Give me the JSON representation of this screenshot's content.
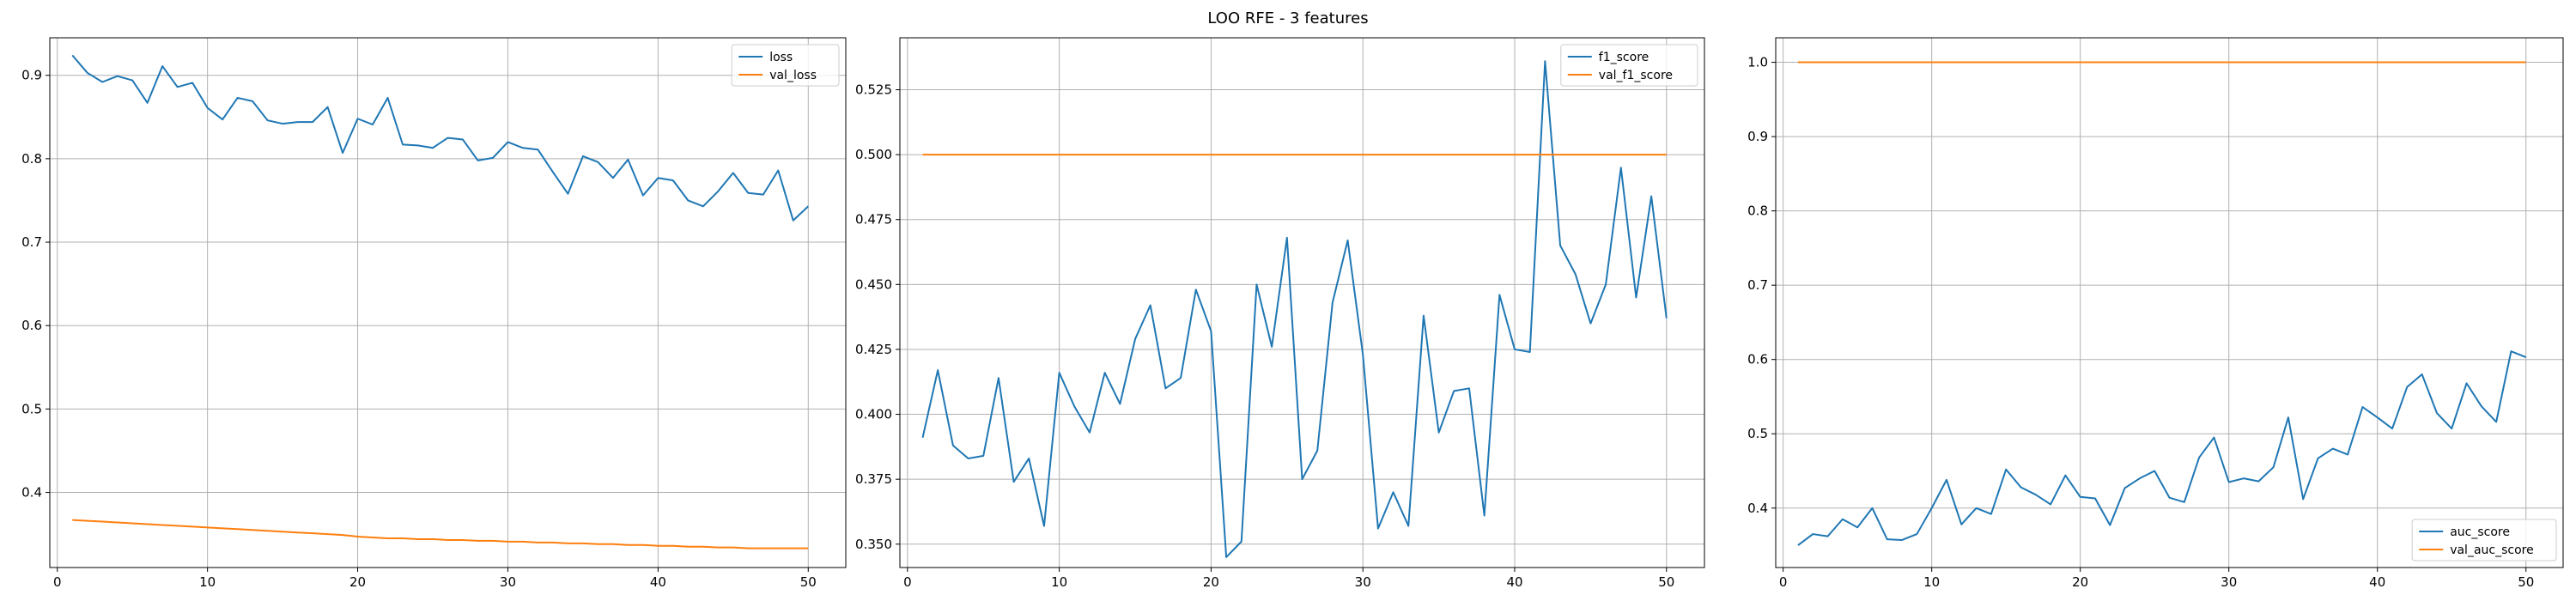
{
  "figure": {
    "title": "LOO RFE - 3 features"
  },
  "chart_data": [
    {
      "type": "line",
      "title": "",
      "xlabel": "",
      "ylabel": "",
      "xlim": [
        -0.5,
        52.5
      ],
      "ylim": [
        0.31,
        0.945
      ],
      "xticks": [
        0,
        10,
        20,
        30,
        40,
        50
      ],
      "yticks": [
        0.4,
        0.5,
        0.6,
        0.7,
        0.8,
        0.9
      ],
      "ytick_labels": [
        "0.4",
        "0.5",
        "0.6",
        "0.7",
        "0.8",
        "0.9"
      ],
      "grid": true,
      "legend_position": "upper right",
      "x": [
        1,
        2,
        3,
        4,
        5,
        6,
        7,
        8,
        9,
        10,
        11,
        12,
        13,
        14,
        15,
        16,
        17,
        18,
        19,
        20,
        21,
        22,
        23,
        24,
        25,
        26,
        27,
        28,
        29,
        30,
        31,
        32,
        33,
        34,
        35,
        36,
        37,
        38,
        39,
        40,
        41,
        42,
        43,
        44,
        45,
        46,
        47,
        48,
        49,
        50
      ],
      "series": [
        {
          "name": "loss",
          "color": "#1f77b4",
          "values": [
            0.924,
            0.903,
            0.892,
            0.899,
            0.894,
            0.867,
            0.911,
            0.886,
            0.891,
            0.861,
            0.847,
            0.873,
            0.869,
            0.846,
            0.842,
            0.844,
            0.844,
            0.862,
            0.807,
            0.848,
            0.841,
            0.873,
            0.817,
            0.816,
            0.813,
            0.825,
            0.823,
            0.798,
            0.801,
            0.82,
            0.813,
            0.811,
            0.784,
            0.758,
            0.803,
            0.796,
            0.777,
            0.799,
            0.756,
            0.777,
            0.774,
            0.75,
            0.743,
            0.761,
            0.783,
            0.759,
            0.757,
            0.786,
            0.726,
            0.743
          ]
        },
        {
          "name": "val_loss",
          "color": "#ff7f0e",
          "values": [
            0.367,
            0.366,
            0.365,
            0.364,
            0.363,
            0.362,
            0.361,
            0.36,
            0.359,
            0.358,
            0.357,
            0.356,
            0.355,
            0.354,
            0.353,
            0.352,
            0.351,
            0.35,
            0.349,
            0.347,
            0.346,
            0.345,
            0.345,
            0.344,
            0.344,
            0.343,
            0.343,
            0.342,
            0.342,
            0.341,
            0.341,
            0.34,
            0.34,
            0.339,
            0.339,
            0.338,
            0.338,
            0.337,
            0.337,
            0.336,
            0.336,
            0.335,
            0.335,
            0.334,
            0.334,
            0.333,
            0.333,
            0.333,
            0.333,
            0.333
          ]
        }
      ]
    },
    {
      "type": "line",
      "title": "",
      "xlabel": "",
      "ylabel": "",
      "xlim": [
        -0.5,
        52.5
      ],
      "ylim": [
        0.341,
        0.545
      ],
      "xticks": [
        0,
        10,
        20,
        30,
        40,
        50
      ],
      "yticks": [
        0.35,
        0.375,
        0.4,
        0.425,
        0.45,
        0.475,
        0.5,
        0.525
      ],
      "ytick_labels": [
        "0.350",
        "0.375",
        "0.400",
        "0.425",
        "0.450",
        "0.475",
        "0.500",
        "0.525"
      ],
      "grid": true,
      "legend_position": "upper right",
      "x": [
        1,
        2,
        3,
        4,
        5,
        6,
        7,
        8,
        9,
        10,
        11,
        12,
        13,
        14,
        15,
        16,
        17,
        18,
        19,
        20,
        21,
        22,
        23,
        24,
        25,
        26,
        27,
        28,
        29,
        30,
        31,
        32,
        33,
        34,
        35,
        36,
        37,
        38,
        39,
        40,
        41,
        42,
        43,
        44,
        45,
        46,
        47,
        48,
        49,
        50
      ],
      "series": [
        {
          "name": "f1_score",
          "color": "#1f77b4",
          "values": [
            0.391,
            0.417,
            0.388,
            0.383,
            0.384,
            0.414,
            0.374,
            0.383,
            0.357,
            0.416,
            0.403,
            0.393,
            0.416,
            0.404,
            0.429,
            0.442,
            0.41,
            0.414,
            0.448,
            0.432,
            0.345,
            0.351,
            0.45,
            0.426,
            0.468,
            0.375,
            0.386,
            0.443,
            0.467,
            0.423,
            0.356,
            0.37,
            0.357,
            0.438,
            0.393,
            0.409,
            0.41,
            0.361,
            0.446,
            0.425,
            0.424,
            0.536,
            0.465,
            0.454,
            0.435,
            0.45,
            0.495,
            0.445,
            0.484,
            0.437
          ]
        },
        {
          "name": "val_f1_score",
          "color": "#ff7f0e",
          "values": [
            0.5,
            0.5,
            0.5,
            0.5,
            0.5,
            0.5,
            0.5,
            0.5,
            0.5,
            0.5,
            0.5,
            0.5,
            0.5,
            0.5,
            0.5,
            0.5,
            0.5,
            0.5,
            0.5,
            0.5,
            0.5,
            0.5,
            0.5,
            0.5,
            0.5,
            0.5,
            0.5,
            0.5,
            0.5,
            0.5,
            0.5,
            0.5,
            0.5,
            0.5,
            0.5,
            0.5,
            0.5,
            0.5,
            0.5,
            0.5,
            0.5,
            0.5,
            0.5,
            0.5,
            0.5,
            0.5,
            0.5,
            0.5,
            0.5,
            0.5
          ]
        }
      ]
    },
    {
      "type": "line",
      "title": "",
      "xlabel": "",
      "ylabel": "",
      "xlim": [
        -0.5,
        52.5
      ],
      "ylim": [
        0.32,
        1.033
      ],
      "xticks": [
        0,
        10,
        20,
        30,
        40,
        50
      ],
      "yticks": [
        0.4,
        0.5,
        0.6,
        0.7,
        0.8,
        0.9,
        1.0
      ],
      "ytick_labels": [
        "0.4",
        "0.5",
        "0.6",
        "0.7",
        "0.8",
        "0.9",
        "1.0"
      ],
      "grid": true,
      "legend_position": "lower right",
      "x": [
        1,
        2,
        3,
        4,
        5,
        6,
        7,
        8,
        9,
        10,
        11,
        12,
        13,
        14,
        15,
        16,
        17,
        18,
        19,
        20,
        21,
        22,
        23,
        24,
        25,
        26,
        27,
        28,
        29,
        30,
        31,
        32,
        33,
        34,
        35,
        36,
        37,
        38,
        39,
        40,
        41,
        42,
        43,
        44,
        45,
        46,
        47,
        48,
        49,
        50
      ],
      "series": [
        {
          "name": "auc_score",
          "color": "#1f77b4",
          "values": [
            0.35,
            0.365,
            0.362,
            0.385,
            0.374,
            0.4,
            0.358,
            0.357,
            0.365,
            0.4,
            0.438,
            0.378,
            0.4,
            0.392,
            0.452,
            0.428,
            0.418,
            0.405,
            0.444,
            0.415,
            0.413,
            0.377,
            0.427,
            0.44,
            0.45,
            0.414,
            0.408,
            0.468,
            0.495,
            0.435,
            0.44,
            0.436,
            0.455,
            0.522,
            0.412,
            0.467,
            0.48,
            0.472,
            0.536,
            0.522,
            0.507,
            0.563,
            0.58,
            0.528,
            0.507,
            0.568,
            0.537,
            0.516,
            0.611,
            0.603
          ]
        },
        {
          "name": "val_auc_score",
          "color": "#ff7f0e",
          "values": [
            1.0,
            1.0,
            1.0,
            1.0,
            1.0,
            1.0,
            1.0,
            1.0,
            1.0,
            1.0,
            1.0,
            1.0,
            1.0,
            1.0,
            1.0,
            1.0,
            1.0,
            1.0,
            1.0,
            1.0,
            1.0,
            1.0,
            1.0,
            1.0,
            1.0,
            1.0,
            1.0,
            1.0,
            1.0,
            1.0,
            1.0,
            1.0,
            1.0,
            1.0,
            1.0,
            1.0,
            1.0,
            1.0,
            1.0,
            1.0,
            1.0,
            1.0,
            1.0,
            1.0,
            1.0,
            1.0,
            1.0,
            1.0,
            1.0,
            1.0
          ]
        }
      ]
    }
  ]
}
